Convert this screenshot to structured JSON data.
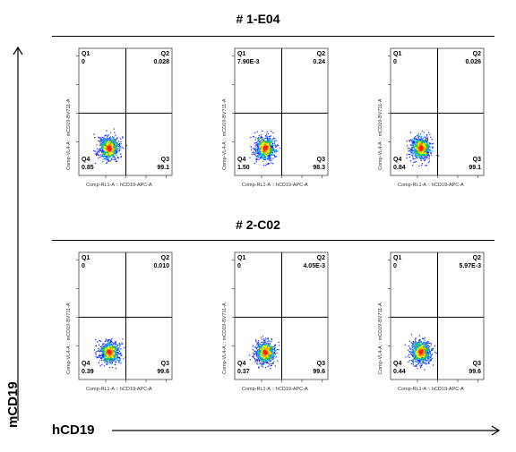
{
  "chart_data": {
    "type": "scatter",
    "x_axis": "hCD19",
    "y_axis": "mCD19",
    "groups": [
      {
        "title": "# 1-E04",
        "plots": [
          {
            "xlabel": "Comp-RL1-A :: hCD19-APC-A",
            "ylabel": "Comp-VL4-A :: mCD19-BV711-A",
            "q1_name": "Q1",
            "q1": "0",
            "q2_name": "Q2",
            "q2": "0.028",
            "q3_name": "Q3",
            "q3": "99.1",
            "q4_name": "Q4",
            "q4": "0.85"
          },
          {
            "xlabel": "Comp-RL1-A :: hCD19-APC-A",
            "ylabel": "Comp-VL4-A :: mCD19-BV711-A",
            "q1_name": "Q1",
            "q1": "7.90E-3",
            "q2_name": "Q2",
            "q2": "0.24",
            "q3_name": "Q3",
            "q3": "98.3",
            "q4_name": "Q4",
            "q4": "1.50"
          },
          {
            "xlabel": "Comp-RL1-A :: hCD19-APC-A",
            "ylabel": "Comp-VL4-A :: mCD19-BV711-A",
            "q1_name": "Q1",
            "q1": "0",
            "q2_name": "Q2",
            "q2": "0.026",
            "q3_name": "Q3",
            "q3": "99.1",
            "q4_name": "Q4",
            "q4": "0.84"
          }
        ]
      },
      {
        "title": "# 2-C02",
        "plots": [
          {
            "xlabel": "Comp-RL1-A :: hCD19-APC-A",
            "ylabel": "Comp-VL4-A :: mCD19-BV711-A",
            "q1_name": "Q1",
            "q1": "0",
            "q2_name": "Q2",
            "q2": "0.010",
            "q3_name": "Q3",
            "q3": "99.6",
            "q4_name": "Q4",
            "q4": "0.39"
          },
          {
            "xlabel": "Comp-RL1-A :: hCD19-APC-A",
            "ylabel": "Comp-VL4-A :: mCD19-BV711-A",
            "q1_name": "Q1",
            "q1": "0",
            "q2_name": "Q2",
            "q2": "4.05E-3",
            "q3_name": "Q3",
            "q3": "99.6",
            "q4_name": "Q4",
            "q4": "0.37"
          },
          {
            "xlabel": "Comp-RL1-A :: hCD19-APC-A",
            "ylabel": "Comp-VL4-A :: mCD19-BV711-A",
            "q1_name": "Q1",
            "q1": "0",
            "q2_name": "Q2",
            "q2": "5.97E-3",
            "q3_name": "Q3",
            "q3": "99.6",
            "q4_name": "Q4",
            "q4": "0.44"
          }
        ]
      }
    ],
    "gate_x": 10000,
    "gate_y": 10000,
    "colors": {
      "density_low": "#1a2bff",
      "density_mid": "#22cc44",
      "density_high": "#ffee00",
      "density_peak": "#ff2200",
      "gate": "#000000"
    }
  }
}
